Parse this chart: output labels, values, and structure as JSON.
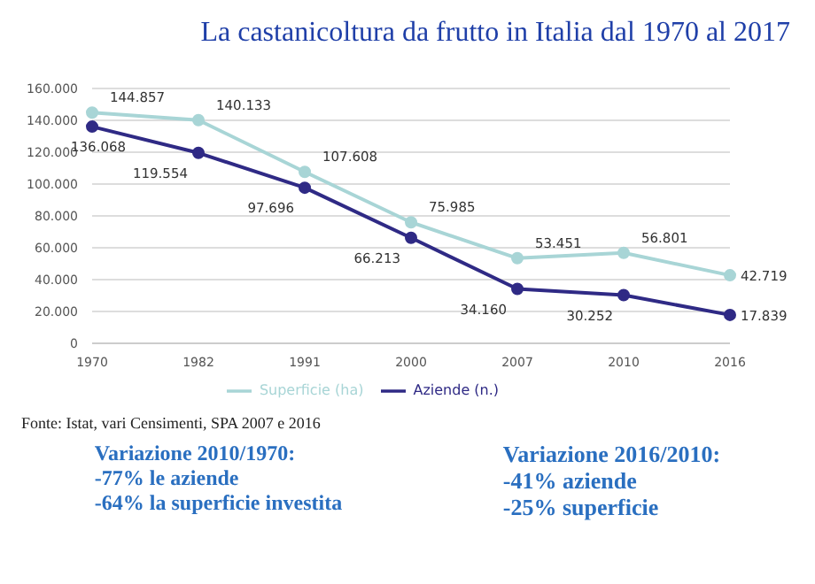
{
  "chart_data": {
    "type": "line",
    "title": "La castanicoltura da frutto in Italia dal 1970 al 2017",
    "categories": [
      "1970",
      "1982",
      "1991",
      "2000",
      "2007",
      "2010",
      "2016"
    ],
    "series": [
      {
        "name": "Superficie (ha)",
        "color": "#a8d5d6",
        "values": [
          144857,
          140133,
          107608,
          75985,
          53451,
          56801,
          42719
        ],
        "value_labels": [
          "144.857",
          "140.133",
          "107.608",
          "75.985",
          "53.451",
          "56.801",
          "42.719"
        ]
      },
      {
        "name": "Aziende (n.)",
        "color": "#2f2a85",
        "values": [
          136068,
          119554,
          97696,
          66213,
          34160,
          30252,
          17839
        ],
        "value_labels": [
          "136.068",
          "119.554",
          "97.696",
          "66.213",
          "34.160",
          "30.252",
          "17.839"
        ]
      }
    ],
    "ylim": [
      0,
      160000
    ],
    "yticks": [
      0,
      {
        "value": 20000,
        "label": "20.000"
      },
      {
        "value": 40000,
        "label": "40.000"
      },
      {
        "value": 60000,
        "label": "60.000"
      },
      {
        "value": 80000,
        "label": "80.000"
      },
      {
        "value": 100000,
        "label": "100.000"
      },
      {
        "value": 120000,
        "label": "120.000"
      },
      {
        "value": 140000,
        "label": "140.000"
      },
      {
        "value": 160000,
        "label": "160.000"
      }
    ],
    "grid": "y",
    "legend": "bottom",
    "marker": "circle",
    "line_style": "solid",
    "annotations": [
      "Fonte: Istat, vari Censimenti, SPA 2007 e 2016",
      "Variazione 2010/1970:\n-77% le aziende\n-64% la superficie investita",
      "Variazione 2016/2010:\n-41% aziende\n-25% superficie"
    ]
  }
}
